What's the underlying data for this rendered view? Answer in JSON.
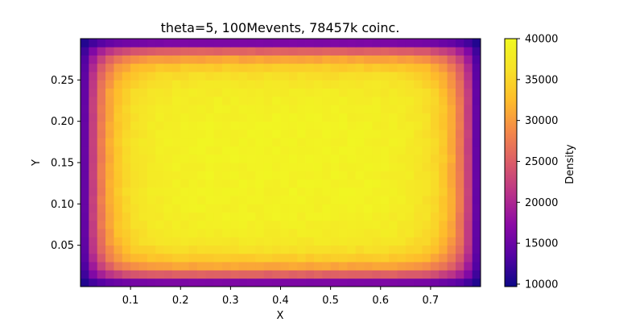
{
  "chart_data": {
    "type": "heatmap",
    "title": "theta=5, 100Mevents, 78457k coinc.",
    "xlabel": "X",
    "ylabel": "Y",
    "xlim": [
      0.0,
      0.8
    ],
    "ylim": [
      0.0,
      0.3
    ],
    "x_ticks": [
      0.1,
      0.2,
      0.3,
      0.4,
      0.5,
      0.6,
      0.7
    ],
    "y_ticks": [
      0.05,
      0.1,
      0.15,
      0.2,
      0.25
    ],
    "x_tick_labels": [
      "0.1",
      "0.2",
      "0.3",
      "0.4",
      "0.5",
      "0.6",
      "0.7"
    ],
    "y_tick_labels": [
      "0.05",
      "0.10",
      "0.15",
      "0.20",
      "0.25"
    ],
    "grid": false,
    "nx": 48,
    "ny": 30,
    "peak": 39000,
    "edge_min": 9700,
    "colormap": "plasma",
    "colorbar": {
      "label": "Density",
      "range": [
        9700,
        40000
      ],
      "ticks": [
        10000,
        15000,
        20000,
        25000,
        30000,
        35000,
        40000
      ],
      "tick_labels": [
        "10000",
        "15000",
        "20000",
        "25000",
        "30000",
        "35000",
        "40000"
      ]
    }
  }
}
